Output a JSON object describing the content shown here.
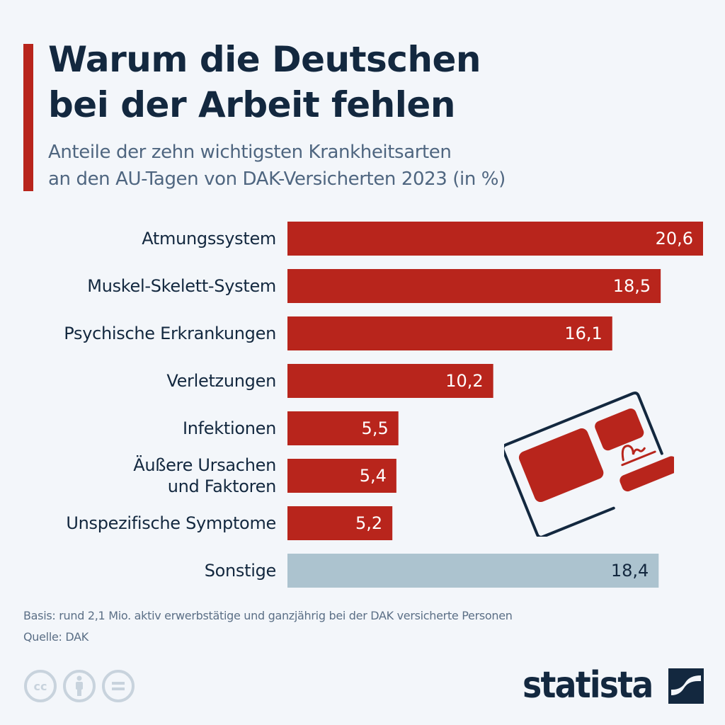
{
  "header": {
    "title_line1": "Warum die Deutschen",
    "title_line2": "bei der Arbeit fehlen",
    "subtitle_line1": "Anteile der zehn wichtigsten Krankheitsarten",
    "subtitle_line2": "an den AU-Tagen von DAK-Versicherten 2023 (in %)"
  },
  "colors": {
    "accent": "#b8251c",
    "bar_highlight": "#b8251c",
    "bar_other": "#acc3cf",
    "text_dark": "#13283f",
    "text_muted": "#5b6f86",
    "background": "#f3f6fa"
  },
  "chart_data": {
    "type": "bar",
    "orientation": "horizontal",
    "title": "Warum die Deutschen bei der Arbeit fehlen",
    "subtitle": "Anteile der zehn wichtigsten Krankheitsarten an den AU-Tagen von DAK-Versicherten 2023 (in %)",
    "xlabel": "",
    "ylabel": "",
    "unit": "%",
    "xlim": [
      0,
      20.6
    ],
    "grid": false,
    "legend": "none",
    "categories": [
      [
        "Atmungssystem"
      ],
      [
        "Muskel-Skelett-System"
      ],
      [
        "Psychische Erkrankungen"
      ],
      [
        "Verletzungen"
      ],
      [
        "Infektionen"
      ],
      [
        "Äußere Ursachen",
        "und Faktoren"
      ],
      [
        "Unspezifische Symptome"
      ],
      [
        "Sonstige"
      ]
    ],
    "values": [
      20.6,
      18.5,
      16.1,
      10.2,
      5.5,
      5.4,
      5.2,
      18.4
    ],
    "value_labels": [
      "20,6",
      "18,5",
      "16,1",
      "10,2",
      "5,5",
      "5,4",
      "5,2",
      "18,4"
    ],
    "highlight": [
      true,
      true,
      true,
      true,
      true,
      true,
      true,
      false
    ]
  },
  "footer": {
    "basis": "Basis: rund 2,1 Mio. aktiv erwerbstätige und ganzjährig bei der DAK versicherte Personen",
    "source": "Quelle: DAK",
    "license_icons": [
      "cc-icon",
      "attribution-icon",
      "no-derivatives-icon"
    ],
    "logo_text": "statista"
  },
  "illustration": {
    "icon": "sick-note-card-icon"
  }
}
